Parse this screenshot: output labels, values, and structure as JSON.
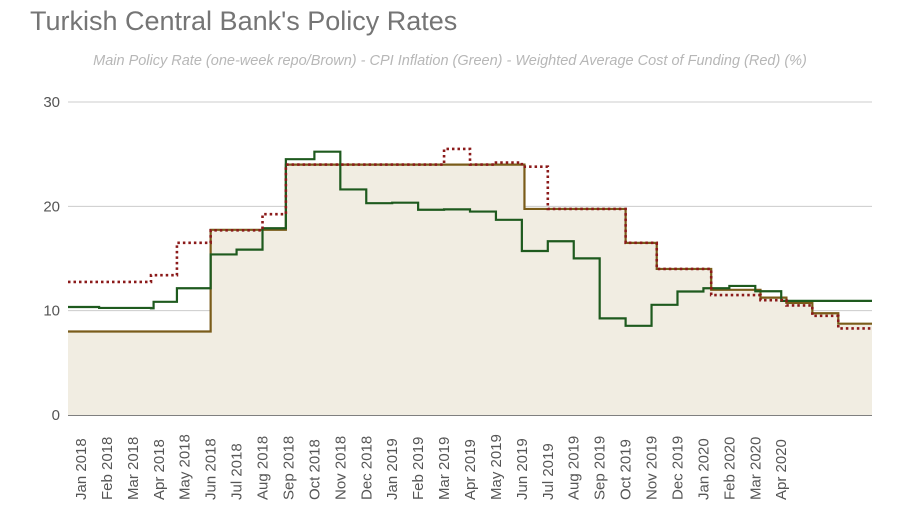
{
  "chart_data": {
    "type": "line",
    "title": "Turkish Central Bank's Policy Rates",
    "subtitle": "Main Policy Rate (one-week repo/Brown) - CPI Inflation (Green) - Weighted Average Cost of Funding (Red) (%)",
    "xlabel": "",
    "ylabel": "",
    "ylim": [
      0,
      30
    ],
    "yticks": [
      0,
      10,
      20,
      30
    ],
    "grid": true,
    "categories": [
      "Jan 2018",
      "Feb 2018",
      "Mar 2018",
      "Apr 2018",
      "May 2018",
      "Jun 2018",
      "Jul 2018",
      "Aug 2018",
      "Sep 2018",
      "Oct 2018",
      "Nov 2018",
      "Dec 2018",
      "Jan 2019",
      "Feb 2019",
      "Mar 2019",
      "Apr 2019",
      "May 2019",
      "Jun 2019",
      "Jul 2019",
      "Aug 2019",
      "Sep 2019",
      "Oct 2019",
      "Nov 2019",
      "Dec 2019",
      "Jan 2020",
      "Feb 2020",
      "Mar 2020",
      "Apr 2020"
    ],
    "series": [
      {
        "key": "policy",
        "style": "area-step",
        "color": "#7a5c1a",
        "fill": "#f1ede2",
        "values": [
          [
            0,
            8
          ],
          [
            5.5,
            8
          ],
          [
            5.5,
            17.75
          ],
          [
            7.65,
            17.75
          ],
          [
            7.65,
            17.75
          ],
          [
            8.4,
            17.75
          ],
          [
            8.4,
            24
          ],
          [
            17.6,
            24
          ],
          [
            17.6,
            19.75
          ],
          [
            21.5,
            19.75
          ],
          [
            21.5,
            16.5
          ],
          [
            22.7,
            16.5
          ],
          [
            22.7,
            14
          ],
          [
            24.8,
            14
          ],
          [
            24.8,
            12
          ],
          [
            26.7,
            12
          ],
          [
            26.7,
            11.25
          ],
          [
            27.7,
            11.25
          ],
          [
            27.7,
            10.75
          ],
          [
            28.7,
            10.75
          ],
          [
            28.7,
            9.75
          ],
          [
            29.7,
            9.75
          ],
          [
            29.7,
            8.75
          ],
          [
            31,
            8.75
          ]
        ]
      },
      {
        "key": "inflation",
        "style": "step",
        "color": "#1e5a1e",
        "values": [
          [
            0,
            10.35
          ],
          [
            1.2,
            10.26
          ],
          [
            3.2,
            10.23
          ],
          [
            3.3,
            10.85
          ],
          [
            4.2,
            12.15
          ],
          [
            5.5,
            15.39
          ],
          [
            6.5,
            15.85
          ],
          [
            7.5,
            17.9
          ],
          [
            8.4,
            24.52
          ],
          [
            9.5,
            25.24
          ],
          [
            10.5,
            21.62
          ],
          [
            11.5,
            20.3
          ],
          [
            12.5,
            20.35
          ],
          [
            13.5,
            19.67
          ],
          [
            14.5,
            19.71
          ],
          [
            15.5,
            19.5
          ],
          [
            16.5,
            18.71
          ],
          [
            17.5,
            15.72
          ],
          [
            18.5,
            16.65
          ],
          [
            19.5,
            15.01
          ],
          [
            20.5,
            9.26
          ],
          [
            21.5,
            8.55
          ],
          [
            22.5,
            10.56
          ],
          [
            23.5,
            11.84
          ],
          [
            24.5,
            12.15
          ],
          [
            25.5,
            12.37
          ],
          [
            26.5,
            11.86
          ],
          [
            27.5,
            10.94
          ],
          [
            28.5,
            10.94
          ],
          [
            29.5,
            10.94
          ],
          [
            31,
            10.94
          ]
        ]
      },
      {
        "key": "funding",
        "style": "dotted-step",
        "color": "#8b1a1a",
        "values": [
          [
            0,
            12.75
          ],
          [
            3.2,
            12.75
          ],
          [
            3.2,
            13.4
          ],
          [
            4.2,
            13.4
          ],
          [
            4.2,
            16.5
          ],
          [
            5.5,
            16.5
          ],
          [
            5.5,
            17.7
          ],
          [
            7.5,
            17.7
          ],
          [
            7.5,
            19.25
          ],
          [
            8.4,
            19.25
          ],
          [
            8.4,
            24
          ],
          [
            14.5,
            24
          ],
          [
            14.5,
            25.5
          ],
          [
            15.5,
            25.5
          ],
          [
            15.5,
            24
          ],
          [
            16.5,
            24
          ],
          [
            16.5,
            24.2
          ],
          [
            17.5,
            24.2
          ],
          [
            17.5,
            23.8
          ],
          [
            18.5,
            23.8
          ],
          [
            18.5,
            19.75
          ],
          [
            21.5,
            19.75
          ],
          [
            21.5,
            16.5
          ],
          [
            22.7,
            16.5
          ],
          [
            22.7,
            14
          ],
          [
            24.8,
            14
          ],
          [
            24.8,
            11.5
          ],
          [
            26.7,
            11.5
          ],
          [
            26.7,
            11
          ],
          [
            27.7,
            11
          ],
          [
            27.7,
            10.5
          ],
          [
            28.7,
            10.5
          ],
          [
            28.7,
            9.5
          ],
          [
            29.7,
            9.5
          ],
          [
            29.7,
            8.3
          ],
          [
            31,
            8.3
          ]
        ]
      }
    ]
  }
}
